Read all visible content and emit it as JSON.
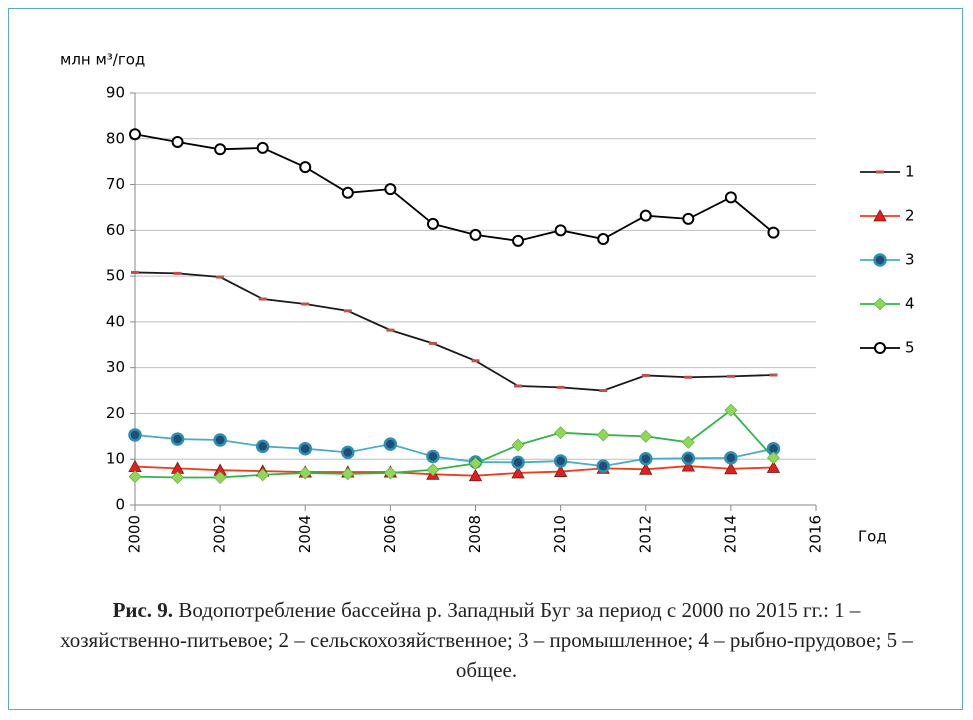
{
  "chart_data": {
    "type": "line",
    "y_axis_label": "млн м³/год",
    "x_axis_label": "Год",
    "caption_label": "Рис. 9.",
    "caption": "Водопотребление бассейна р. Западный Буг за период с 2000 по 2015 гг.: 1 – хозяйственно-питьевое; 2 – сельскохозяйственное; 3 – промышленное;  4 – рыбно-прудовое; 5 – общее.",
    "x": [
      2000,
      2001,
      2002,
      2003,
      2004,
      2005,
      2006,
      2007,
      2008,
      2009,
      2010,
      2011,
      2012,
      2013,
      2014,
      2015
    ],
    "xlim": [
      2000,
      2016
    ],
    "xticks": [
      2000,
      2002,
      2004,
      2006,
      2008,
      2010,
      2012,
      2014,
      2016
    ],
    "ylim": [
      0,
      90
    ],
    "yticks": [
      0,
      10,
      20,
      30,
      40,
      50,
      60,
      70,
      80,
      90
    ],
    "grid": true,
    "legend": "right",
    "series": [
      {
        "name": "1",
        "color": "#1a1a1a",
        "marker": "dash",
        "marker_color": "#c0504d",
        "values": [
          50.8,
          50.6,
          49.8,
          45,
          43.9,
          42.4,
          38.2,
          35.3,
          31.5,
          26,
          25.7,
          25,
          28.3,
          27.9,
          28.1,
          28.4
        ]
      },
      {
        "name": "2",
        "color": "#e8411c",
        "marker": "triangle",
        "marker_color": "#e02020",
        "values": [
          8.4,
          8,
          7.6,
          7.4,
          7.2,
          7.2,
          7.2,
          6.7,
          6.4,
          7,
          7.3,
          8,
          7.8,
          8.5,
          7.9,
          8.2
        ]
      },
      {
        "name": "3",
        "color": "#4bacc6",
        "marker": "circle",
        "marker_color": "#2e8fb0",
        "values": [
          15.3,
          14.4,
          14.2,
          12.8,
          12.3,
          11.5,
          13.3,
          10.6,
          9.4,
          9.3,
          9.6,
          8.5,
          10.1,
          10.2,
          10.3,
          12.3
        ]
      },
      {
        "name": "4",
        "color": "#2fb54a",
        "marker": "diamond",
        "marker_color": "#8fd65a",
        "values": [
          6.2,
          6.0,
          6.0,
          6.6,
          7.0,
          6.8,
          7.0,
          7.7,
          9.1,
          13.1,
          15.8,
          15.3,
          15.0,
          13.7,
          20.7,
          10.3
        ]
      },
      {
        "name": "5",
        "color": "#000000",
        "marker": "open-circle",
        "marker_color": "#ffffff",
        "values": [
          81,
          79.3,
          77.7,
          78,
          73.8,
          68.2,
          69,
          61.4,
          59,
          57.7,
          60,
          58.1,
          63.2,
          62.5,
          67.2,
          59.5
        ]
      }
    ]
  }
}
